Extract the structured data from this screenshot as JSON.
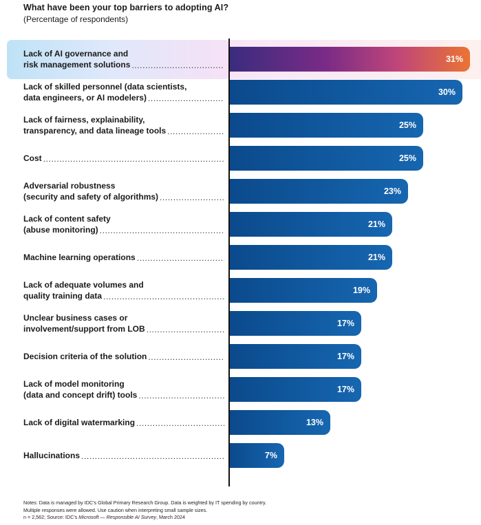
{
  "question": "What have been your top barriers to adopting AI?",
  "subtitle": "(Percentage of respondents)",
  "colors": {
    "bar": "#0b4a8c",
    "highlight_start": "#3a2c7e",
    "highlight_end": "#ea7433",
    "highlight_panel": "#bfe2f6"
  },
  "chart_data": {
    "type": "bar",
    "orientation": "horizontal",
    "title": "What have been your top barriers to adopting AI?",
    "subtitle": "(Percentage of respondents)",
    "xlim": [
      0,
      31
    ],
    "unit": "%",
    "highlighted_index": 0,
    "categories": [
      [
        "Lack of AI governance and",
        "risk management solutions"
      ],
      [
        "Lack of skilled personnel (data scientists,",
        "data engineers, or AI modelers)"
      ],
      [
        "Lack of fairness, explainability,",
        "transparency, and data lineage tools"
      ],
      [
        "Cost"
      ],
      [
        "Adversarial robustness",
        "(security and safety of algorithms)"
      ],
      [
        "Lack of content safety",
        "(abuse monitoring)"
      ],
      [
        "Machine learning operations"
      ],
      [
        "Lack of adequate volumes and",
        "quality training data"
      ],
      [
        "Unclear business cases or",
        "involvement/support from LOB"
      ],
      [
        "Decision criteria of the solution"
      ],
      [
        "Lack of model monitoring",
        "(data and concept drift) tools"
      ],
      [
        "Lack of digital watermarking"
      ],
      [
        "Hallucinations"
      ]
    ],
    "values": [
      31,
      30,
      25,
      25,
      23,
      21,
      21,
      19,
      17,
      17,
      17,
      13,
      7
    ],
    "value_labels": [
      "31%",
      "30%",
      "25%",
      "25%",
      "23%",
      "21%",
      "21%",
      "19%",
      "17%",
      "17%",
      "17%",
      "13%",
      "7%"
    ]
  },
  "notes": {
    "line1": "Notes: Data is managed by IDC's Global Primary Research Group. Data is weighted by IT spending by country.",
    "line2": "Multiple responses were allowed. Use caution when interpreting small sample sizes.",
    "line3_prefix": "n = 2,562; Source: IDC's ",
    "line3_italic": "Microsoft — Responsible AI Survey",
    "line3_suffix": ", March 2024"
  }
}
